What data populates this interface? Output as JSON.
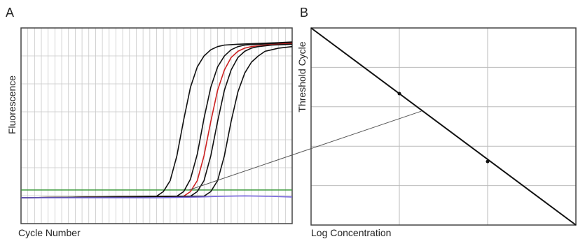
{
  "chart_data": [
    {
      "type": "line",
      "panel_label": "A",
      "xlabel": "Cycle Number",
      "ylabel": "Fluorescence",
      "xlim": [
        0,
        40
      ],
      "ylim": [
        0,
        1
      ],
      "grid": true,
      "threshold": {
        "value": 0.05,
        "color": "#3a9a3a"
      },
      "series": [
        {
          "color": "#111111",
          "x": [
            0,
            20,
            21,
            22,
            23,
            24,
            25,
            26,
            27,
            28,
            29,
            30,
            32,
            35,
            38,
            40
          ],
          "values": [
            0,
            0.01,
            0.04,
            0.11,
            0.27,
            0.5,
            0.71,
            0.84,
            0.91,
            0.95,
            0.97,
            0.98,
            0.985,
            0.99,
            0.995,
            1.0
          ]
        },
        {
          "color": "#111111",
          "x": [
            0,
            23,
            24,
            25,
            26,
            27,
            28,
            29,
            30,
            31,
            32,
            33,
            35,
            38,
            40
          ],
          "values": [
            0,
            0.01,
            0.04,
            0.12,
            0.28,
            0.51,
            0.71,
            0.84,
            0.91,
            0.95,
            0.97,
            0.98,
            0.985,
            0.99,
            0.995
          ]
        },
        {
          "color": "#cc2222",
          "x": [
            0,
            24,
            25,
            26,
            27,
            28,
            29,
            30,
            31,
            32,
            33,
            34,
            36,
            38,
            40
          ],
          "values": [
            0,
            0.01,
            0.04,
            0.11,
            0.27,
            0.49,
            0.69,
            0.82,
            0.9,
            0.94,
            0.96,
            0.97,
            0.98,
            0.985,
            0.99
          ]
        },
        {
          "color": "#111111",
          "x": [
            0,
            25,
            26,
            27,
            28,
            29,
            30,
            31,
            32,
            33,
            34,
            35,
            37,
            40
          ],
          "values": [
            0,
            0.01,
            0.04,
            0.11,
            0.27,
            0.49,
            0.69,
            0.82,
            0.9,
            0.94,
            0.96,
            0.97,
            0.98,
            0.985
          ]
        },
        {
          "color": "#111111",
          "x": [
            0,
            27,
            28,
            29,
            30,
            31,
            32,
            33,
            34,
            35,
            36,
            37,
            38,
            40
          ],
          "values": [
            0,
            0.01,
            0.04,
            0.11,
            0.27,
            0.49,
            0.68,
            0.8,
            0.87,
            0.91,
            0.94,
            0.95,
            0.96,
            0.97
          ]
        },
        {
          "color": "#7766dd",
          "x": [
            0,
            20,
            26,
            30,
            33,
            36,
            40
          ],
          "values": [
            0,
            0.0,
            0.005,
            0.01,
            0.012,
            0.01,
            0.005
          ]
        }
      ]
    },
    {
      "type": "scatter",
      "panel_label": "B",
      "xlabel": "Log Concentration",
      "ylabel": "Threshold Cycle",
      "xlim": [
        0,
        3
      ],
      "ylim": [
        0,
        4.5
      ],
      "grid": true,
      "points": [
        {
          "x": 1.0,
          "y": 3.0
        },
        {
          "x": 2.0,
          "y": 1.45
        }
      ],
      "fit_line": {
        "x": [
          0,
          3
        ],
        "y": [
          4.5,
          0
        ]
      },
      "highlight_point": {
        "x": 1.25,
        "y": 2.6
      }
    }
  ]
}
